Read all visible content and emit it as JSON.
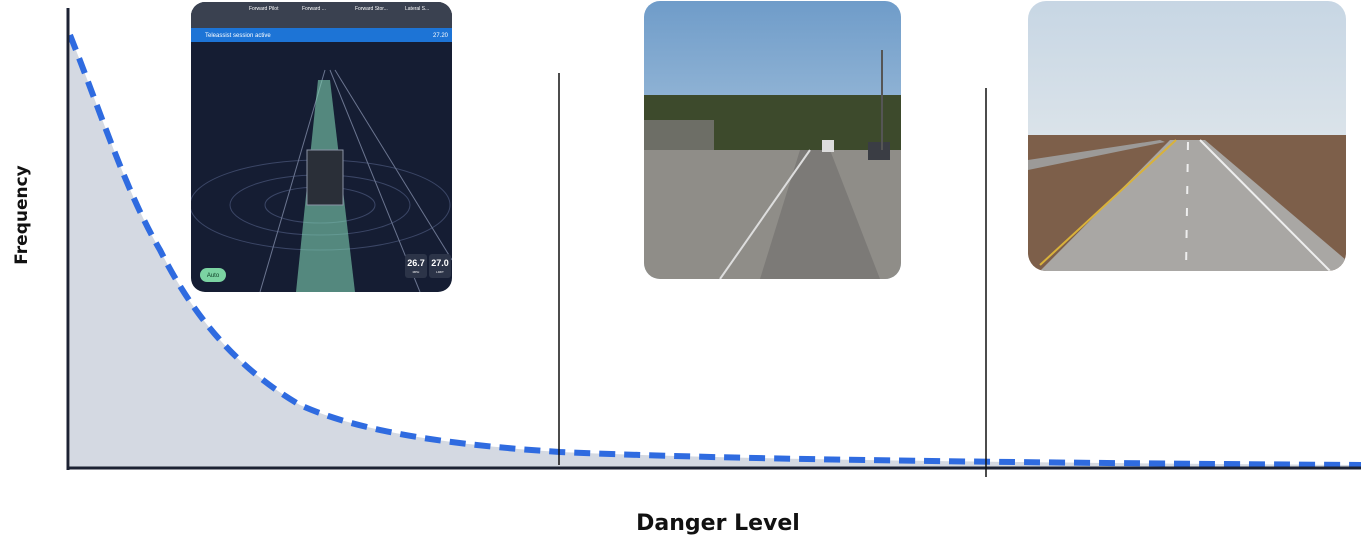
{
  "axes": {
    "y_label": "Frequency",
    "x_label": "Danger Level"
  },
  "teleassist": {
    "banner": "Teleassist session active",
    "time": "27.20",
    "tabs": [
      "Forward Pilot",
      "Forward ...",
      "Forward Stor...",
      "Lateral S..."
    ],
    "mode": "Auto",
    "speed": "26.7",
    "speed_unit": "MPH",
    "limit": "27.0",
    "limit_unit": "LIMIT"
  }
}
